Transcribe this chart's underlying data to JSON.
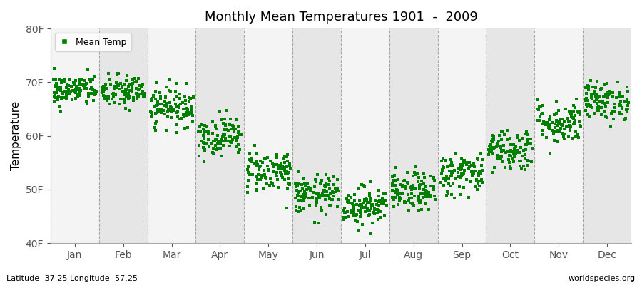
{
  "title": "Monthly Mean Temperatures 1901  -  2009",
  "ylabel": "Temperature",
  "xlabel_labels": [
    "Jan",
    "Feb",
    "Mar",
    "Apr",
    "May",
    "Jun",
    "Jul",
    "Aug",
    "Sep",
    "Oct",
    "Nov",
    "Dec"
  ],
  "yticks": [
    40,
    50,
    60,
    70,
    80
  ],
  "ytick_labels": [
    "40F",
    "50F",
    "60F",
    "70F",
    "80F"
  ],
  "ylim": [
    40,
    80
  ],
  "dot_color": "#008000",
  "bg_color": "#ebebeb",
  "band_color_odd": "#f4f4f4",
  "band_color_even": "#e6e6e6",
  "bottom_left_text": "Latitude -37.25 Longitude -57.25",
  "bottom_right_text": "worldspecies.org",
  "legend_label": "Mean Temp",
  "n_years": 109,
  "monthly_means": [
    68.5,
    68.2,
    65.5,
    60.0,
    53.5,
    49.0,
    47.0,
    49.5,
    53.0,
    57.5,
    62.5,
    66.5
  ],
  "monthly_stds": [
    1.5,
    1.6,
    1.8,
    1.8,
    2.0,
    1.8,
    1.8,
    1.8,
    2.0,
    2.0,
    2.0,
    1.8
  ],
  "grid_positions": [
    0,
    1,
    2,
    3,
    4,
    5,
    6,
    7,
    8,
    9,
    10,
    11,
    12
  ],
  "marker_size": 5,
  "figure_bg": "#ffffff"
}
